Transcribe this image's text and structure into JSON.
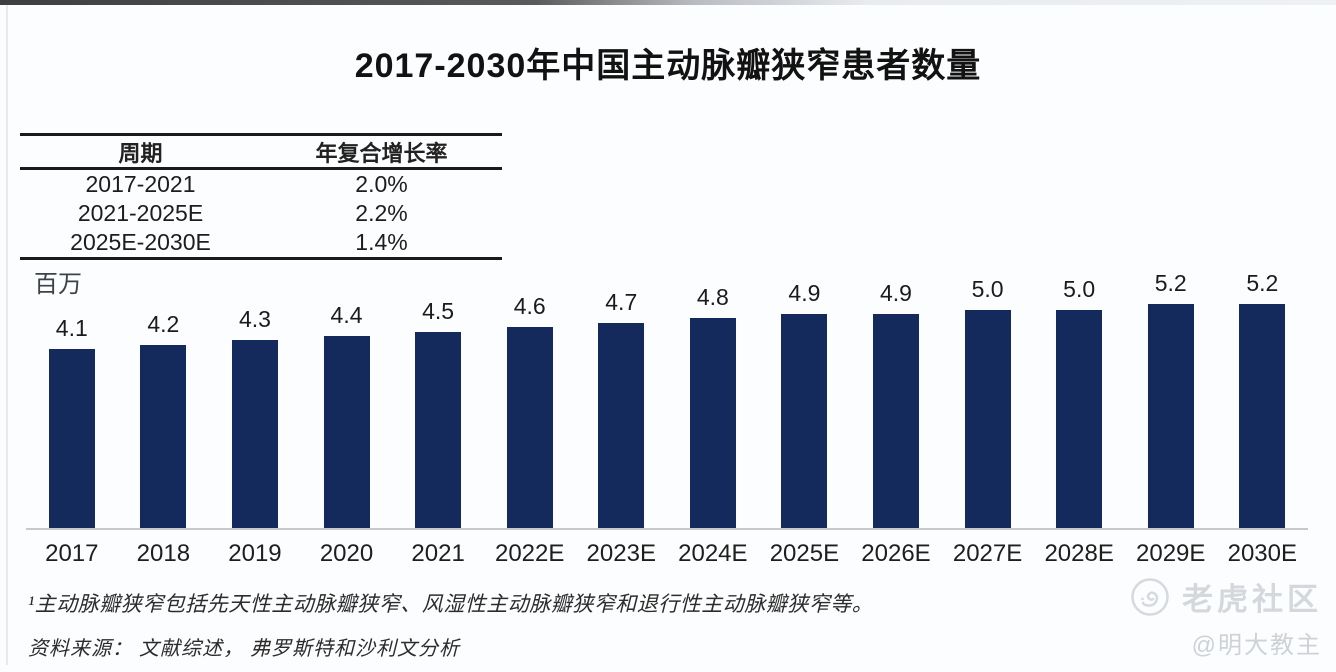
{
  "title": "2017-2030年中国主动脉瓣狭窄患者数量",
  "cagr_table": {
    "headers": [
      "周期",
      "年复合增长率"
    ],
    "rows": [
      [
        "2017-2021",
        "2.0%"
      ],
      [
        "2021-2025E",
        "2.2%"
      ],
      [
        "2025E-2030E",
        "1.4%"
      ]
    ]
  },
  "unit_label": "百万",
  "chart_data": {
    "type": "bar",
    "categories": [
      "2017",
      "2018",
      "2019",
      "2020",
      "2021",
      "2022E",
      "2023E",
      "2024E",
      "2025E",
      "2026E",
      "2027E",
      "2028E",
      "2029E",
      "2030E"
    ],
    "values": [
      4.1,
      4.2,
      4.3,
      4.4,
      4.5,
      4.6,
      4.7,
      4.8,
      4.9,
      4.9,
      5.0,
      5.0,
      5.2,
      5.2
    ],
    "title": "2017-2030年中国主动脉瓣狭窄患者数量",
    "xlabel": "",
    "ylabel": "百万",
    "ylim": [
      0,
      5.2
    ],
    "bar_color": "#14295c",
    "grid": false,
    "legend": false,
    "data_labels": true
  },
  "footnotes": {
    "note1": "¹主动脉瓣狭窄包括先天性主动脉瓣狭窄、风湿性主动脉瓣狭窄和退行性主动脉瓣狭窄等。",
    "source": "资料来源：  文献综述，  弗罗斯特和沙利文分析"
  },
  "watermark": {
    "community": "老虎社区",
    "author": "@明大教主"
  }
}
